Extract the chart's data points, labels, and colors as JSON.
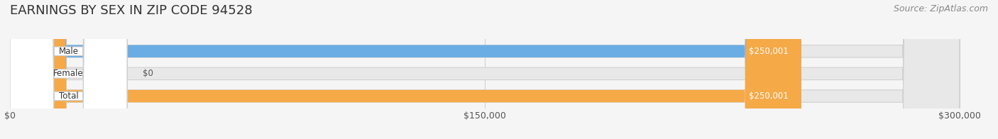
{
  "title": "EARNINGS BY SEX IN ZIP CODE 94528",
  "source": "Source: ZipAtlas.com",
  "categories": [
    "Male",
    "Female",
    "Total"
  ],
  "values": [
    250001,
    0,
    250001
  ],
  "max_value": 300000,
  "bar_colors": [
    "#6aade4",
    "#f4a0b5",
    "#f5a947"
  ],
  "bar_bg_color": "#e8e8e8",
  "label_colors": [
    "#6aade4",
    "#f4a0b5",
    "#f5a947"
  ],
  "value_labels": [
    "$250,001",
    "$0",
    "$250,001"
  ],
  "tick_labels": [
    "$0",
    "$150,000",
    "$300,000"
  ],
  "tick_values": [
    0,
    150000,
    300000
  ],
  "title_fontsize": 13,
  "source_fontsize": 9,
  "bar_label_fontsize": 9,
  "tick_fontsize": 9,
  "fig_bg_color": "#f5f5f5",
  "bar_bg_border_color": "#d0d0d0"
}
